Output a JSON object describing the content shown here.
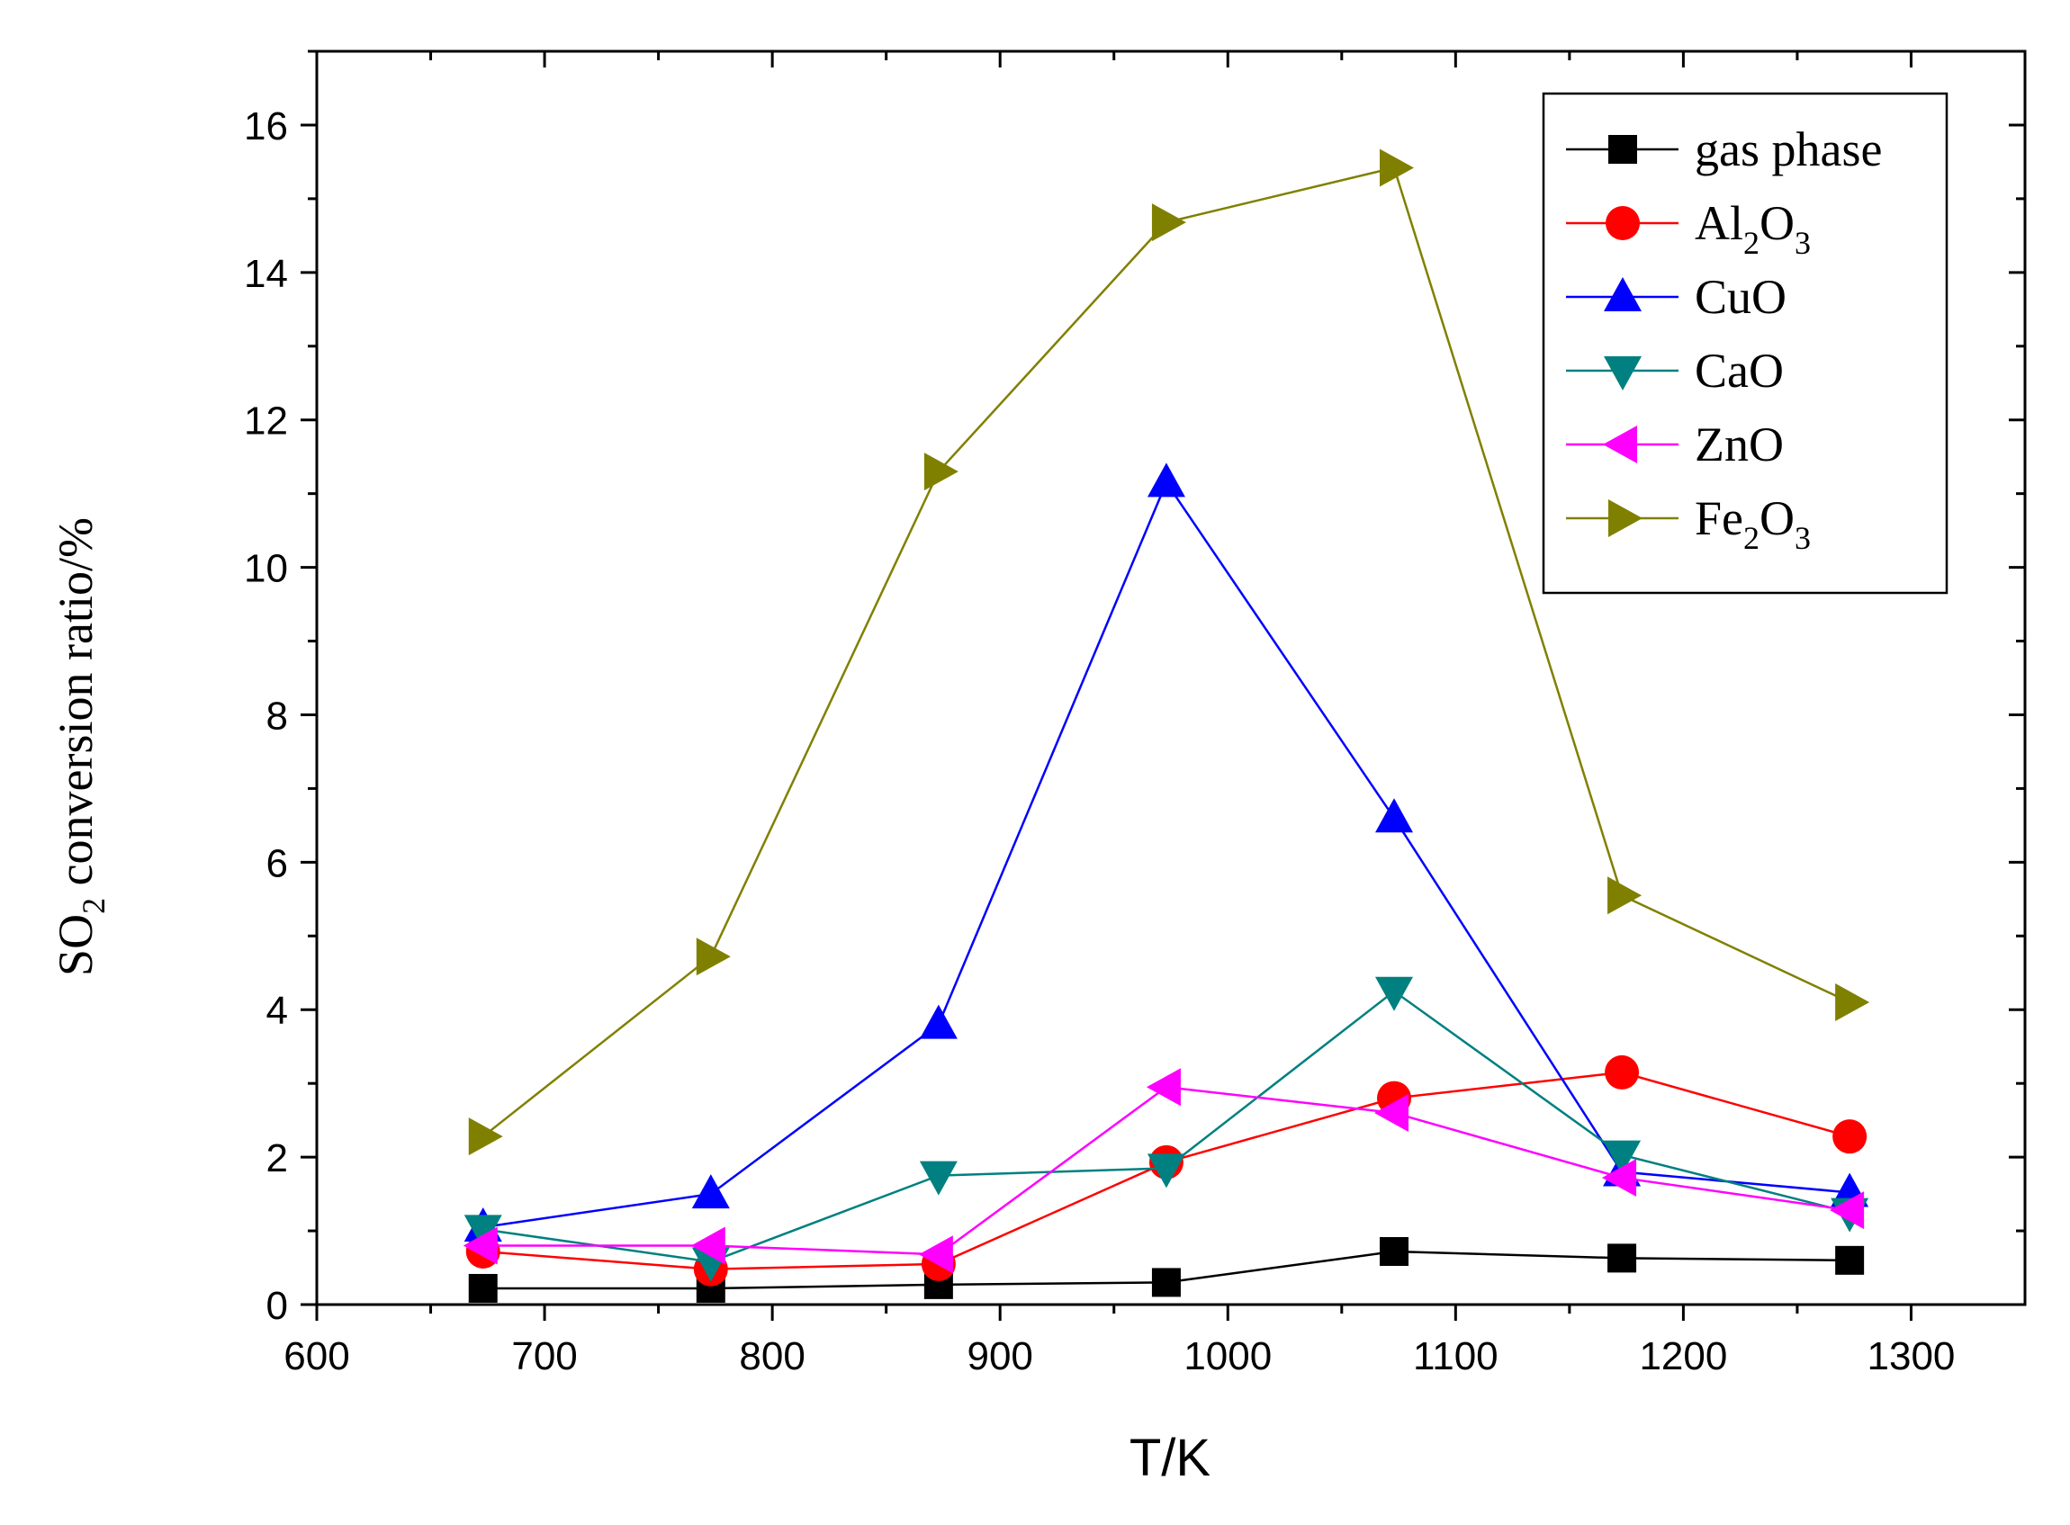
{
  "chart_data": {
    "type": "line",
    "xlabel": "T/K",
    "ylabel": {
      "prefix": "SO",
      "sub": "2",
      "suffix": " conversion  ratio/%"
    },
    "xlim": [
      600,
      1350
    ],
    "ylim": [
      0,
      17
    ],
    "xticks": [
      600,
      700,
      800,
      900,
      1000,
      1100,
      1200,
      1300
    ],
    "yticks": [
      0,
      2,
      4,
      6,
      8,
      10,
      12,
      14,
      16
    ],
    "x": [
      673,
      773,
      873,
      973,
      1073,
      1173,
      1273
    ],
    "legend_position": "top-right",
    "series": [
      {
        "name": "gas phase",
        "label": [
          {
            "t": "gas phase"
          }
        ],
        "color": "#000000",
        "marker": "square",
        "values": [
          0.22,
          0.22,
          0.27,
          0.3,
          0.72,
          0.63,
          0.6
        ]
      },
      {
        "name": "Al2O3",
        "label": [
          {
            "t": "Al"
          },
          {
            "t": "2",
            "sub": true
          },
          {
            "t": "O"
          },
          {
            "t": "3",
            "sub": true
          }
        ],
        "color": "#ff0000",
        "marker": "circle",
        "values": [
          0.72,
          0.48,
          0.55,
          1.93,
          2.8,
          3.15,
          2.28
        ]
      },
      {
        "name": "CuO",
        "label": [
          {
            "t": "CuO"
          }
        ],
        "color": "#0000ff",
        "marker": "triangle-up",
        "values": [
          1.05,
          1.5,
          3.8,
          11.15,
          6.6,
          1.8,
          1.52
        ]
      },
      {
        "name": "CaO",
        "label": [
          {
            "t": "CaO"
          }
        ],
        "color": "#008080",
        "marker": "triangle-down",
        "values": [
          1.02,
          0.58,
          1.75,
          1.85,
          4.25,
          2.03,
          1.25
        ]
      },
      {
        "name": "ZnO",
        "label": [
          {
            "t": "ZnO"
          }
        ],
        "color": "#ff00ff",
        "marker": "triangle-left",
        "values": [
          0.8,
          0.8,
          0.68,
          2.95,
          2.6,
          1.72,
          1.28
        ]
      },
      {
        "name": "Fe2O3",
        "label": [
          {
            "t": "Fe"
          },
          {
            "t": "2",
            "sub": true
          },
          {
            "t": "O"
          },
          {
            "t": "3",
            "sub": true
          }
        ],
        "color": "#808000",
        "marker": "triangle-right",
        "values": [
          2.28,
          4.72,
          11.3,
          14.68,
          15.42,
          5.55,
          4.1
        ]
      }
    ]
  }
}
